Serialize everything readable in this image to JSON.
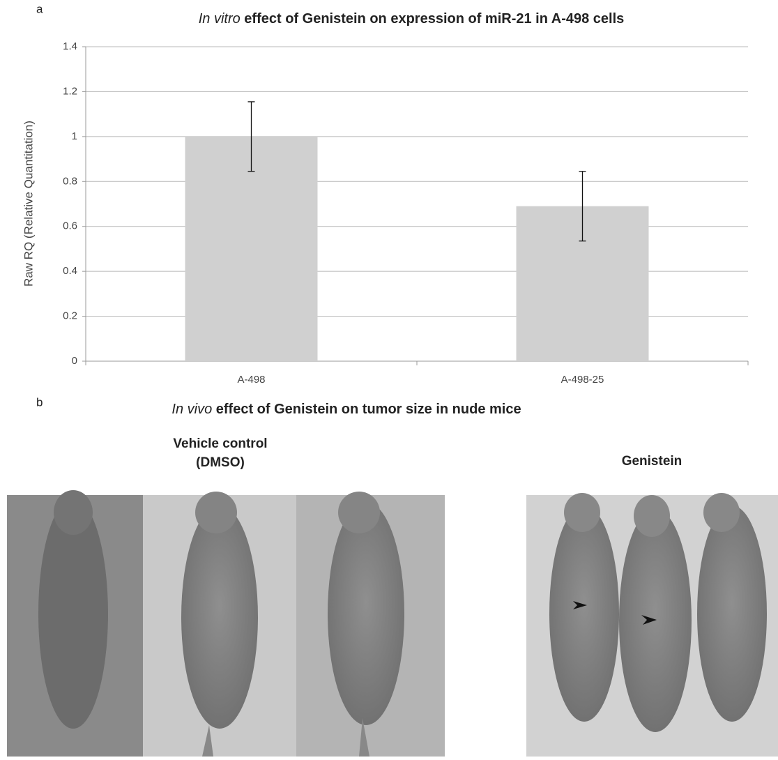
{
  "panel_a": {
    "label": "a"
  },
  "chart_data": {
    "type": "bar",
    "title": "In vitro effect of Genistein on expression of miR-21 in A-498 cells",
    "y_label": "Raw RQ (Relative Quantitation)",
    "categories": [
      "A-498",
      "A-498-25"
    ],
    "values": [
      1.0,
      0.69
    ],
    "errors": [
      0.155,
      0.155
    ],
    "color": "#d0d0d0",
    "ylim": [
      0,
      1.4
    ],
    "yticks": [
      0,
      0.2,
      0.4,
      0.6,
      0.8,
      1,
      1.2,
      1.4
    ],
    "grid": true
  },
  "panel_b": {
    "label": "b",
    "title": "In vivo effect of Genistein on tumor size in nude mice",
    "groups": [
      {
        "lines": [
          "Vehicle control",
          "(DMSO)"
        ]
      },
      {
        "lines": [
          "Genistein"
        ]
      }
    ]
  }
}
